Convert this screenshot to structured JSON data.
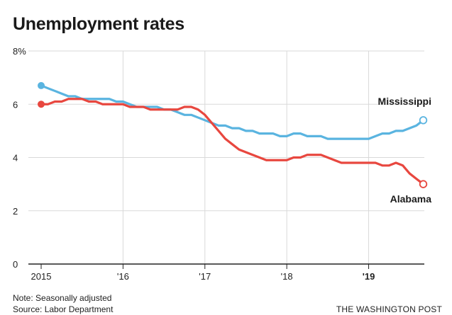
{
  "chart_data": {
    "type": "line",
    "title": "Unemployment rates",
    "xlabel": "",
    "ylabel": "",
    "xlim": [
      2015,
      2019.7
    ],
    "ylim": [
      0,
      8
    ],
    "y_ticks": [
      {
        "value": 0,
        "label": "0"
      },
      {
        "value": 2,
        "label": "2"
      },
      {
        "value": 4,
        "label": "4"
      },
      {
        "value": 6,
        "label": "6"
      },
      {
        "value": 8,
        "label": "8%"
      }
    ],
    "x_ticks": [
      {
        "value": 2015,
        "label": "2015"
      },
      {
        "value": 2016,
        "label": "'16"
      },
      {
        "value": 2017,
        "label": "'17"
      },
      {
        "value": 2018,
        "label": "'18"
      },
      {
        "value": 2019,
        "label": "'19"
      }
    ],
    "grid": true,
    "series": [
      {
        "name": "Mississippi",
        "color": "#5ab4e0",
        "x": [
          2015.0,
          2015.083,
          2015.167,
          2015.25,
          2015.333,
          2015.417,
          2015.5,
          2015.583,
          2015.667,
          2015.75,
          2015.833,
          2015.917,
          2016.0,
          2016.083,
          2016.167,
          2016.25,
          2016.333,
          2016.417,
          2016.5,
          2016.583,
          2016.667,
          2016.75,
          2016.833,
          2016.917,
          2017.0,
          2017.083,
          2017.167,
          2017.25,
          2017.333,
          2017.417,
          2017.5,
          2017.583,
          2017.667,
          2017.75,
          2017.833,
          2017.917,
          2018.0,
          2018.083,
          2018.167,
          2018.25,
          2018.333,
          2018.417,
          2018.5,
          2018.583,
          2018.667,
          2018.75,
          2018.833,
          2018.917,
          2019.0,
          2019.083,
          2019.167,
          2019.25,
          2019.333,
          2019.417,
          2019.5,
          2019.583,
          2019.667
        ],
        "values": [
          6.7,
          6.6,
          6.5,
          6.4,
          6.3,
          6.3,
          6.2,
          6.2,
          6.2,
          6.2,
          6.2,
          6.1,
          6.1,
          6.0,
          5.9,
          5.9,
          5.9,
          5.9,
          5.8,
          5.8,
          5.7,
          5.6,
          5.6,
          5.5,
          5.4,
          5.3,
          5.2,
          5.2,
          5.1,
          5.1,
          5.0,
          5.0,
          4.9,
          4.9,
          4.9,
          4.8,
          4.8,
          4.9,
          4.9,
          4.8,
          4.8,
          4.8,
          4.7,
          4.7,
          4.7,
          4.7,
          4.7,
          4.7,
          4.7,
          4.8,
          4.9,
          4.9,
          5.0,
          5.0,
          5.1,
          5.2,
          5.4
        ]
      },
      {
        "name": "Alabama",
        "color": "#e8473f",
        "x": [
          2015.0,
          2015.083,
          2015.167,
          2015.25,
          2015.333,
          2015.417,
          2015.5,
          2015.583,
          2015.667,
          2015.75,
          2015.833,
          2015.917,
          2016.0,
          2016.083,
          2016.167,
          2016.25,
          2016.333,
          2016.417,
          2016.5,
          2016.583,
          2016.667,
          2016.75,
          2016.833,
          2016.917,
          2017.0,
          2017.083,
          2017.167,
          2017.25,
          2017.333,
          2017.417,
          2017.5,
          2017.583,
          2017.667,
          2017.75,
          2017.833,
          2017.917,
          2018.0,
          2018.083,
          2018.167,
          2018.25,
          2018.333,
          2018.417,
          2018.5,
          2018.583,
          2018.667,
          2018.75,
          2018.833,
          2018.917,
          2019.0,
          2019.083,
          2019.167,
          2019.25,
          2019.333,
          2019.417,
          2019.5,
          2019.583,
          2019.667
        ],
        "values": [
          6.0,
          6.0,
          6.1,
          6.1,
          6.2,
          6.2,
          6.2,
          6.1,
          6.1,
          6.0,
          6.0,
          6.0,
          6.0,
          5.9,
          5.9,
          5.9,
          5.8,
          5.8,
          5.8,
          5.8,
          5.8,
          5.9,
          5.9,
          5.8,
          5.6,
          5.3,
          5.0,
          4.7,
          4.5,
          4.3,
          4.2,
          4.1,
          4.0,
          3.9,
          3.9,
          3.9,
          3.9,
          4.0,
          4.0,
          4.1,
          4.1,
          4.1,
          4.0,
          3.9,
          3.8,
          3.8,
          3.8,
          3.8,
          3.8,
          3.8,
          3.7,
          3.7,
          3.8,
          3.7,
          3.4,
          3.2,
          3.0
        ]
      }
    ],
    "annotations": {
      "note": "Note: Seasonally adjusted",
      "source": "Source: Labor Department",
      "publisher": "THE WASHINGTON POST"
    }
  }
}
